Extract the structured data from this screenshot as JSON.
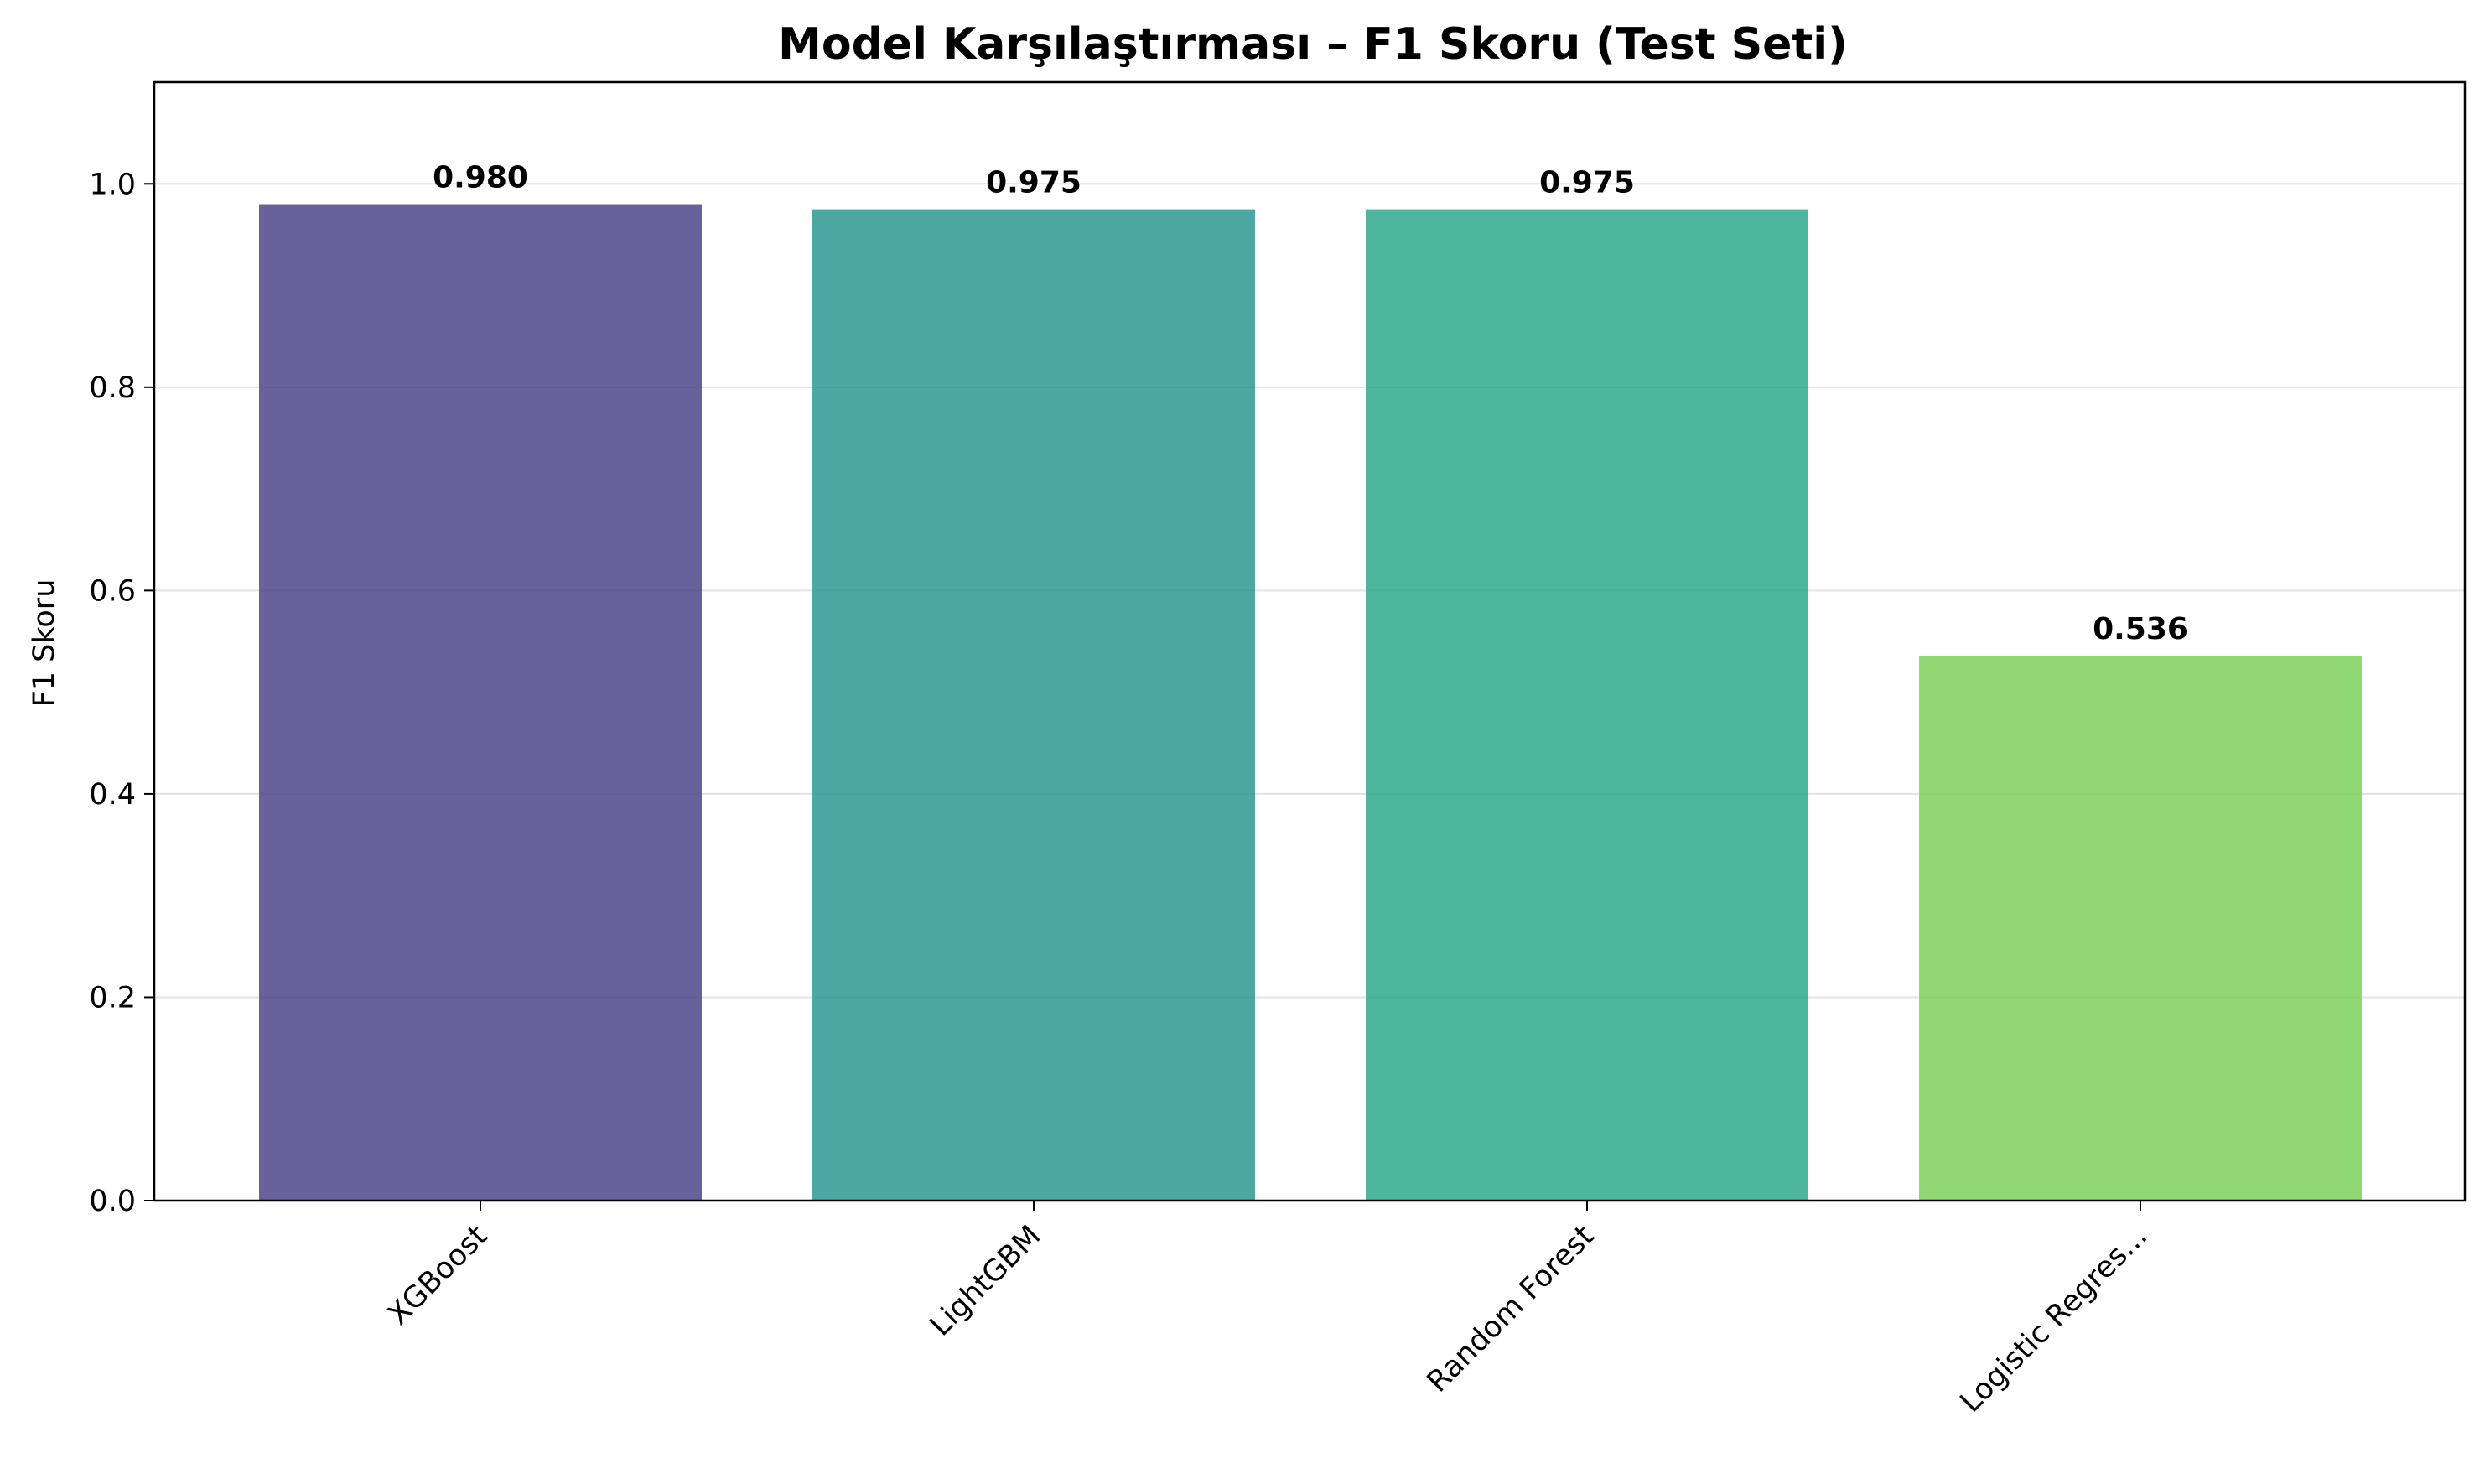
{
  "chart_data": {
    "type": "bar",
    "title": "Model Karşılaştırması – F1 Skoru (Test Seti)",
    "xlabel": "",
    "ylabel": "F1 Skoru",
    "categories": [
      "XGBoost",
      "LightGBM",
      "Random Forest",
      "Logistic Regres..."
    ],
    "values": [
      0.98,
      0.975,
      0.975,
      0.536
    ],
    "value_labels": [
      "0.980",
      "0.975",
      "0.975",
      "0.536"
    ],
    "colors": [
      "#443983",
      "#21918c",
      "#20a484",
      "#75d054"
    ],
    "ylim": [
      0,
      1.1
    ],
    "yticks": [
      0.0,
      0.2,
      0.4,
      0.6,
      0.8,
      1.0
    ],
    "ytick_labels": [
      "0.0",
      "0.2",
      "0.4",
      "0.6",
      "0.8",
      "1.0"
    ],
    "grid": "horizontal",
    "legend": "none",
    "bar_opacity": 0.8
  }
}
